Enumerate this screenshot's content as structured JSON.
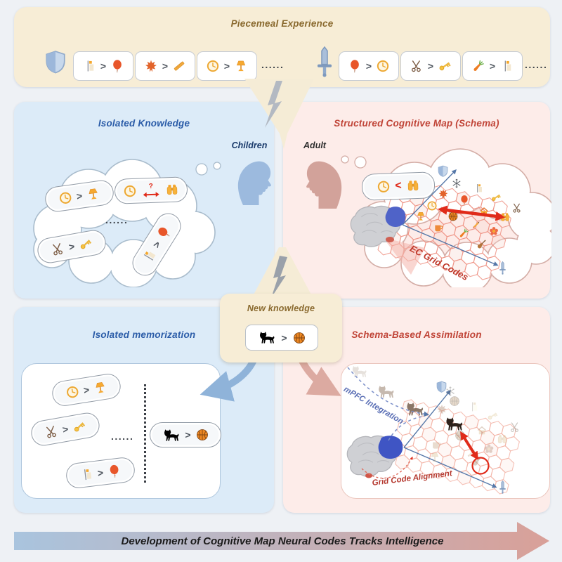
{
  "banner": {
    "title": "Piecemeal Experience",
    "dots": "......",
    "group1_icon": "shield",
    "group2_icon": "sword",
    "group1_pairs": [
      [
        "candle",
        "balloon"
      ],
      [
        "maple-leaf",
        "ruler"
      ],
      [
        "clock",
        "lamp"
      ]
    ],
    "group2_pairs": [
      [
        "balloon",
        "clock"
      ],
      [
        "scissors",
        "key"
      ],
      [
        "carrot",
        "candle"
      ]
    ]
  },
  "relations": {
    "gt": ">",
    "lt": "<",
    "q": "?"
  },
  "isolated_knowledge": {
    "title": "Isolated Knowledge",
    "person": "Children",
    "dots": "......",
    "pairs": [
      [
        "clock",
        "lamp"
      ],
      [
        "scissors",
        "key"
      ],
      [
        "candle",
        "balloon"
      ]
    ],
    "uncertain_pair": [
      "clock",
      "binoculars"
    ]
  },
  "schema_map": {
    "title": "Structured Cognitive Map (Schema)",
    "person": "Adult",
    "known_pair": [
      "clock",
      "binoculars"
    ],
    "axes_label": "EC Grid Codes",
    "grid_icons": [
      "snowflake",
      "candle",
      "maple-leaf",
      "key",
      "balloon",
      "scissors",
      "clock",
      "house",
      "binoculars",
      "lamp",
      "basketball",
      "cup",
      "pencil",
      "flower",
      "carrot",
      "violin"
    ]
  },
  "new_knowledge": {
    "title": "New knowledge",
    "pair": [
      "cat",
      "basketball"
    ]
  },
  "isolated_memorization": {
    "title": "Isolated memorization",
    "dots": "......",
    "pairs": [
      [
        "clock",
        "lamp"
      ],
      [
        "scissors",
        "key"
      ],
      [
        "candle",
        "balloon"
      ]
    ],
    "new_pair": [
      "cat",
      "basketball"
    ]
  },
  "assimilation": {
    "title": "Schema-Based Assimilation",
    "mpfc_label": "mPFC Integration",
    "align_label": "Grid Code Alignment",
    "faded_icons": [
      "basketball",
      "candle",
      "key",
      "maple-leaf",
      "basketball",
      "house",
      "binoculars",
      "cup",
      "pencil",
      "flower",
      "violin",
      "scissors",
      "lamp",
      "snowflake"
    ]
  },
  "footer": {
    "label": "Development of Cognitive Map Neural Codes Tracks Intelligence"
  },
  "colors": {
    "blue_panel": "#dcebf8",
    "pink_panel": "#fdece9",
    "cream": "#f7edd6",
    "blue_title": "#2b5ca8",
    "red_title": "#c04437",
    "brown_title": "#8a6a2f",
    "accent_red": "#e02b1a",
    "mpfc_blue": "#5b6fb5",
    "axis_blue": "#5577a8",
    "arrow_gradient_start": "#a9c4de",
    "arrow_gradient_end": "#d9a098"
  }
}
